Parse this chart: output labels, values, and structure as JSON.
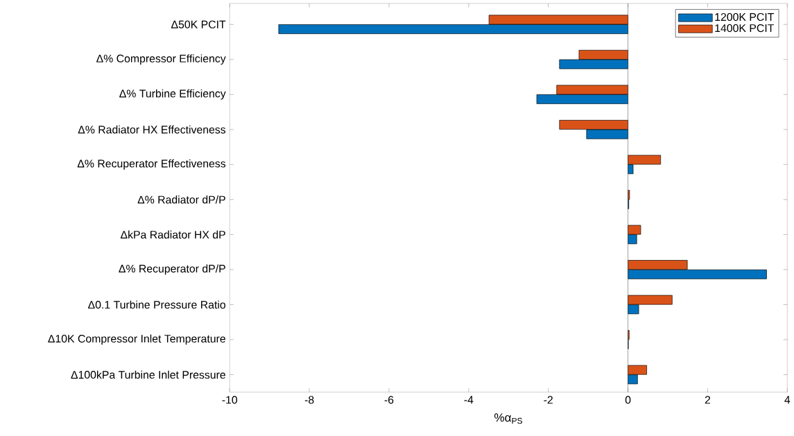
{
  "chart_data": {
    "type": "bar",
    "orientation": "horizontal",
    "xlabel": "%α$_{PS}$",
    "categories": [
      "Δ50K PCIT",
      "Δ% Compressor Efficiency",
      "Δ% Turbine Efficiency",
      "Δ% Radiator HX Effectiveness",
      "Δ% Recuperator Effectiveness",
      "Δ% Radiator dP/P",
      "ΔkPa Radiator HX dP",
      "Δ% Recuperator dP/P",
      "Δ0.1 Turbine Pressure Ratio",
      "Δ10K Compressor Inlet Temperature",
      "Δ100kPa Turbine Inlet Pressure"
    ],
    "series": [
      {
        "name": "1200K PCIT",
        "color": "#0072bd",
        "values": [
          -8.77,
          -1.72,
          -2.29,
          -1.04,
          0.13,
          0.02,
          0.22,
          3.48,
          0.27,
          0.01,
          0.24
        ]
      },
      {
        "name": "1400K PCIT",
        "color": "#d95319",
        "values": [
          -3.49,
          -1.23,
          -1.79,
          -1.72,
          0.82,
          0.04,
          0.32,
          1.49,
          1.11,
          0.03,
          0.47
        ]
      }
    ],
    "xlim": [
      -10,
      4
    ],
    "xticks": [
      -10,
      -8,
      -6,
      -4,
      -2,
      0,
      2,
      4
    ],
    "ref_lines": [
      {
        "axis": "x",
        "value": 0
      }
    ],
    "grid": false,
    "legend": "top right"
  }
}
